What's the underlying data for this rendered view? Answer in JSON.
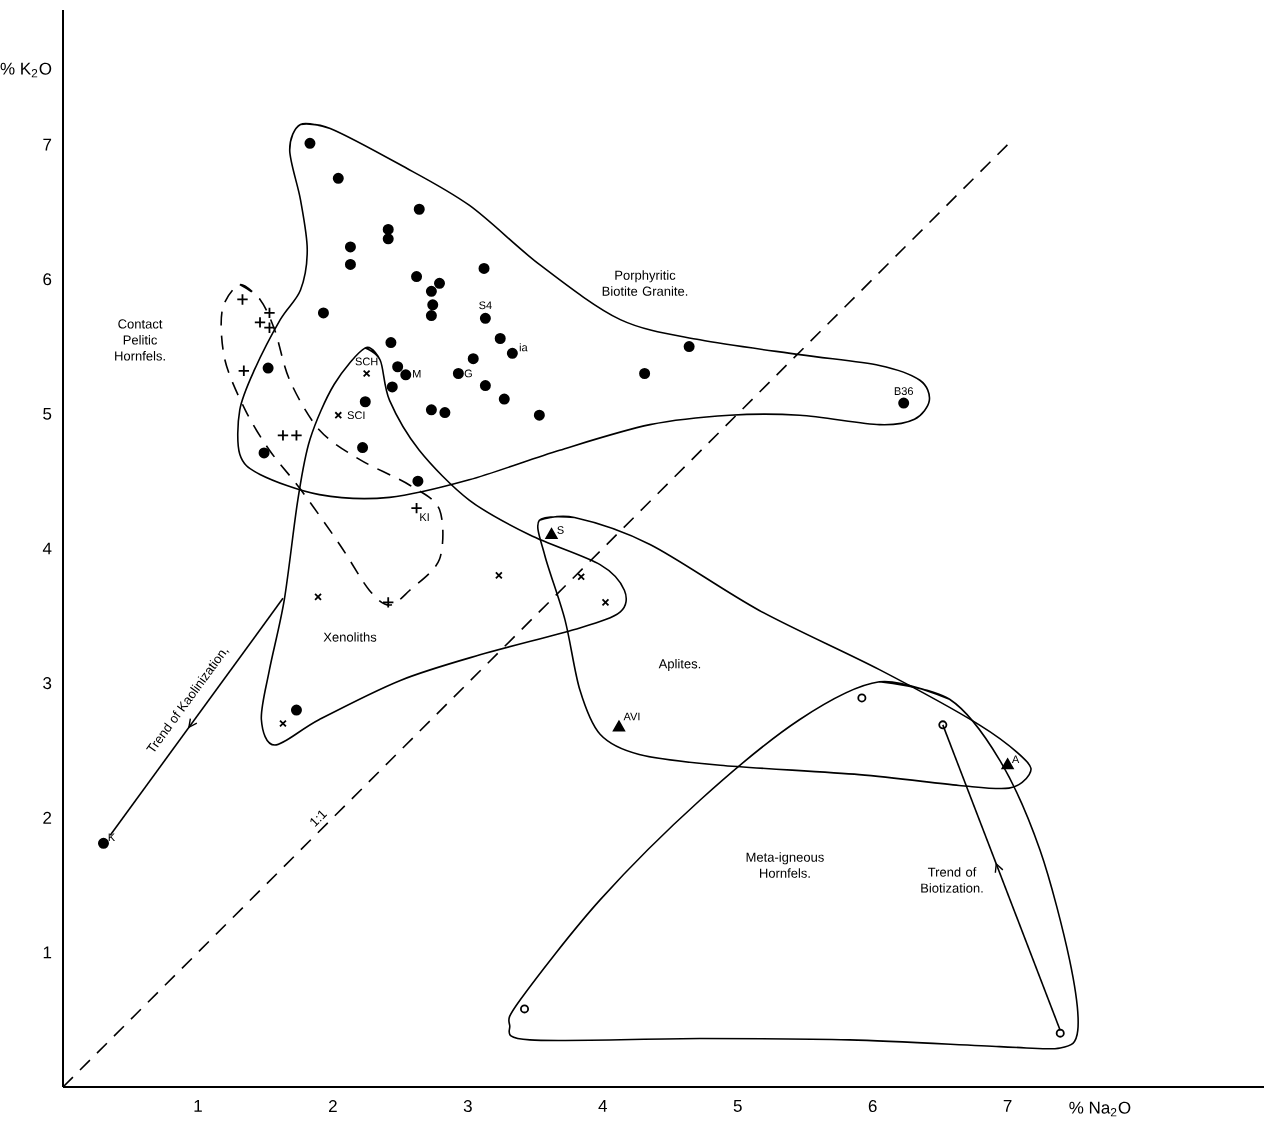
{
  "chart_data": {
    "type": "scatter",
    "xlabel": "% Na$_{2}$O",
    "ylabel": "% K$_{2}$O",
    "xlim": [
      0,
      8.9
    ],
    "ylim": [
      0,
      8
    ],
    "xticks": [
      1,
      2,
      3,
      4,
      5,
      6,
      7
    ],
    "yticks": [
      1,
      2,
      3,
      4,
      5,
      6,
      7
    ],
    "series": [
      {
        "marker": "circle",
        "color": "#000000",
        "x": [
          1.83,
          2.04,
          2.64,
          2.41,
          2.41,
          2.13,
          2.13,
          3.12,
          2.62,
          2.79,
          2.73,
          2.74,
          2.73,
          1.93,
          3.13,
          2.43,
          3.24,
          3.33,
          3.04,
          1.52,
          2.48,
          2.54,
          2.93,
          2.44,
          3.13,
          3.27,
          2.24,
          2.73,
          2.83,
          3.53,
          2.22,
          1.49,
          2.63,
          4.64,
          4.31,
          6.23,
          1.73,
          0.3
        ],
        "values": [
          7.01,
          6.75,
          6.52,
          6.37,
          6.3,
          6.24,
          6.11,
          6.08,
          6.02,
          5.97,
          5.91,
          5.81,
          5.73,
          5.75,
          5.71,
          5.53,
          5.56,
          5.45,
          5.41,
          5.34,
          5.35,
          5.29,
          5.3,
          5.2,
          5.21,
          5.11,
          5.09,
          5.03,
          5.01,
          4.99,
          4.75,
          4.71,
          4.5,
          5.5,
          5.3,
          5.08,
          2.8,
          1.81
        ]
      },
      {
        "marker": "cross",
        "color": "#000000",
        "x": [
          1.33,
          1.53,
          1.46,
          1.53,
          1.34,
          1.63,
          1.73,
          2.62,
          2.41
        ],
        "values": [
          5.85,
          5.75,
          5.68,
          5.64,
          5.32,
          4.84,
          4.84,
          4.3,
          3.6
        ]
      },
      {
        "marker": "cross",
        "color": "#000000",
        "x": [
          2.25,
          2.04,
          1.89,
          3.23,
          3.84,
          4.02,
          1.63
        ],
        "values": [
          5.3,
          4.99,
          3.64,
          3.8,
          3.79,
          3.6,
          2.7
        ]
      },
      {
        "marker": "triangle",
        "color": "#000000",
        "x": [
          3.62,
          4.12,
          7.0
        ],
        "values": [
          4.1,
          2.67,
          2.39
        ]
      },
      {
        "marker": "circle",
        "color": "#000000",
        "x": [
          5.92,
          6.52,
          3.42,
          7.39
        ],
        "values": [
          2.89,
          2.69,
          0.58,
          0.4
        ]
      },
      {
        "type": "line",
        "name": "1:1",
        "line_style": "dashed",
        "color": "#000000",
        "x": [
          0,
          7
        ],
        "values": [
          0,
          7
        ]
      },
      {
        "type": "line",
        "name": "Trend of Kaolinization,",
        "line_style": "solid",
        "color": "#000000",
        "x": [
          1.63,
          0.35
        ],
        "values": [
          3.63,
          1.87
        ]
      },
      {
        "type": "line",
        "name": "Trend of Biotization.",
        "line_style": "solid",
        "color": "#000000",
        "x": [
          7.39,
          6.52
        ],
        "values": [
          0.42,
          2.69
        ]
      },
      {
        "type": "line",
        "line_style": "solid",
        "color": "#000000",
        "x": [
          1.76,
          1.98,
          2.5,
          3.01,
          3.53,
          4.13,
          4.72,
          5.46,
          6.05,
          6.35,
          6.42,
          6.31,
          6.05,
          5.46,
          4.94,
          4.35,
          3.68,
          3.01,
          2.42,
          1.9,
          1.46,
          1.31,
          1.31,
          1.42,
          1.61,
          1.76,
          1.81,
          1.76,
          1.68,
          1.76
        ],
        "values": [
          7.15,
          7.12,
          6.85,
          6.55,
          6.11,
          5.7,
          5.55,
          5.44,
          5.36,
          5.25,
          5.1,
          4.96,
          4.92,
          4.99,
          4.99,
          4.92,
          4.73,
          4.51,
          4.38,
          4.4,
          4.55,
          4.7,
          5.03,
          5.33,
          5.7,
          5.92,
          6.22,
          6.59,
          6.96,
          7.15
        ]
      },
      {
        "type": "line",
        "line_style": "dashed",
        "color": "#000000",
        "x": [
          1.31,
          1.46,
          1.57,
          1.68,
          1.9,
          2.2,
          2.57,
          2.79,
          2.79,
          2.57,
          2.42,
          2.27,
          2.05,
          1.76,
          1.53,
          1.35,
          1.2,
          1.18,
          1.31
        ],
        "values": [
          5.96,
          5.85,
          5.62,
          5.25,
          4.88,
          4.66,
          4.47,
          4.29,
          3.92,
          3.69,
          3.58,
          3.69,
          4.03,
          4.44,
          4.73,
          5.03,
          5.4,
          5.77,
          5.96
        ]
      },
      {
        "type": "line",
        "line_style": "solid",
        "color": "#000000",
        "x": [
          2.24,
          2.35,
          2.42,
          2.64,
          3.01,
          3.46,
          3.98,
          4.16,
          4.13,
          3.83,
          3.09,
          2.5,
          1.9,
          1.57,
          1.47,
          1.53,
          1.64,
          1.74,
          1.83,
          2.01,
          2.24
        ],
        "values": [
          5.49,
          5.4,
          5.1,
          4.73,
          4.36,
          4.1,
          3.88,
          3.69,
          3.53,
          3.41,
          3.21,
          3.02,
          2.73,
          2.54,
          2.73,
          3.1,
          3.62,
          4.36,
          4.81,
          5.22,
          5.49
        ]
      },
      {
        "type": "line",
        "line_style": "solid",
        "color": "#000000",
        "x": [
          3.53,
          3.79,
          4.35,
          5.16,
          6.05,
          6.79,
          7.13,
          7.16,
          7.01,
          6.64,
          5.9,
          4.87,
          4.27,
          3.98,
          3.83,
          3.72,
          3.57,
          3.53
        ],
        "values": [
          4.21,
          4.23,
          4.03,
          3.54,
          3.1,
          2.69,
          2.43,
          2.32,
          2.22,
          2.24,
          2.32,
          2.39,
          2.47,
          2.62,
          2.95,
          3.47,
          3.95,
          4.21
        ]
      },
      {
        "type": "line",
        "line_style": "solid",
        "color": "#000000",
        "x": [
          6.05,
          6.57,
          6.94,
          7.24,
          7.46,
          7.52,
          7.39,
          6.94,
          5.83,
          4.72,
          3.46,
          3.31,
          3.39,
          3.98,
          4.72,
          5.46,
          6.05
        ],
        "values": [
          3.01,
          2.88,
          2.43,
          1.76,
          0.94,
          0.42,
          0.29,
          0.3,
          0.35,
          0.36,
          0.35,
          0.46,
          0.65,
          1.39,
          2.13,
          2.73,
          3.01
        ]
      }
    ],
    "annotations": [
      {
        "text": "S4",
        "x": 3.13,
        "y": 5.71
      },
      {
        "text": "ia",
        "x": 3.33,
        "y": 5.45
      },
      {
        "text": "M",
        "x": 2.54,
        "y": 5.29
      },
      {
        "text": "G",
        "x": 2.93,
        "y": 5.3
      },
      {
        "text": "B36",
        "x": 6.23,
        "y": 5.08
      },
      {
        "text": "K",
        "x": 0.3,
        "y": 1.81
      },
      {
        "text": "SCH",
        "x": 2.25,
        "y": 5.3
      },
      {
        "text": "SCI",
        "x": 2.04,
        "y": 4.99
      },
      {
        "text": "KI",
        "x": 2.62,
        "y": 4.3
      },
      {
        "text": "S",
        "x": 3.62,
        "y": 4.1
      },
      {
        "text": "AVI",
        "x": 4.12,
        "y": 2.67
      },
      {
        "text": "A",
        "x": 7.0,
        "y": 2.39
      },
      "Porphyritic Biotite Granite.",
      "Contact Pelitic Hornfels.",
      "Xenoliths",
      "Aplites.",
      "Meta-igneous Hornfels."
    ]
  }
}
